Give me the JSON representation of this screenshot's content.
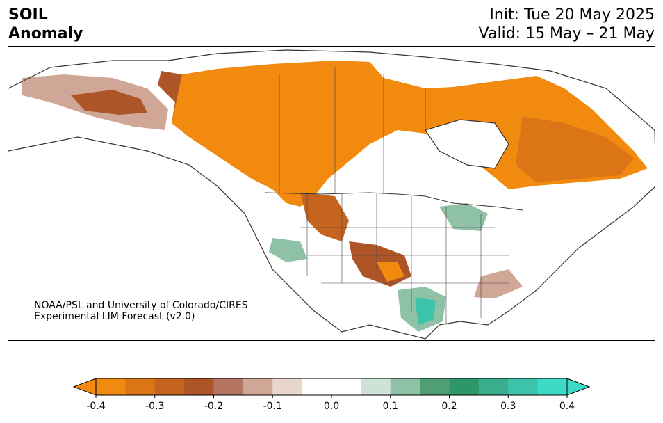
{
  "title": {
    "line1": "SOIL",
    "line2": "Anomaly"
  },
  "init": {
    "line1": "Init: Tue 20 May 2025",
    "line2": "Valid: 15 May – 21 May"
  },
  "credit": {
    "line1": "NOAA/PSL and University of Colorado/CIRES",
    "line2": "Experimental LIM Forecast (v2.0)"
  },
  "colorbar": {
    "ticks": [
      "-0.4",
      "-0.3",
      "-0.2",
      "-0.1",
      "0.0",
      "0.1",
      "0.2",
      "0.3",
      "0.4"
    ],
    "colors": [
      "#f28a10",
      "#dc7516",
      "#c5641f",
      "#ad5527",
      "#b47561",
      "#d0a796",
      "#e8d6cc",
      "#ffffff",
      "#ffffff",
      "#cde3d8",
      "#8fc1a6",
      "#4f9f72",
      "#2e976a",
      "#38ae8c",
      "#3cc4aa",
      "#3cd9c5"
    ],
    "under_color": "#f28a10",
    "over_color": "#3cd9c5"
  }
}
